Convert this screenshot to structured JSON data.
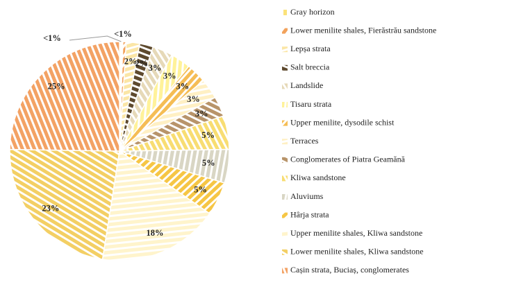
{
  "chart_data": {
    "type": "pie",
    "categories": [
      "Gray horizon",
      "Lower menilite shales, Fierăstrău sandstone",
      "Lepșa strata",
      "Salt breccia",
      "Landslide",
      "Tisaru strata",
      "Upper menilite, dysodile schist",
      "Terraces",
      "Conglomerates of Piatra Geamănă",
      "Kliwa sandstone",
      "Aluviums",
      "Hârja strata",
      "Upper menilite shales, Kliwa sandstone",
      "Lower menilite shales, Kliwa sandstone",
      "Cașin strata, Buciaș, conglomerates"
    ],
    "values": [
      0.5,
      0.5,
      2,
      2,
      3,
      3,
      3,
      3,
      3,
      5,
      5,
      5,
      18,
      23,
      25
    ],
    "value_labels": [
      "<1%",
      "<1%",
      "2%",
      "2%",
      "3%",
      "3%",
      "3%",
      "3%",
      "3%",
      "5%",
      "5%",
      "5%",
      "18%",
      "23%",
      "25%"
    ],
    "colors": [
      "#fbe27a",
      "#f2a25c",
      "#fbe6a6",
      "#5e4a2e",
      "#e6d9b8",
      "#fff29a",
      "#f5bd55",
      "#fff0c4",
      "#b8946a",
      "#f8dd72",
      "#d9d6c4",
      "#f6c645",
      "#fff4cc",
      "#f3cf64",
      "#f3a264"
    ],
    "legend": "right"
  }
}
